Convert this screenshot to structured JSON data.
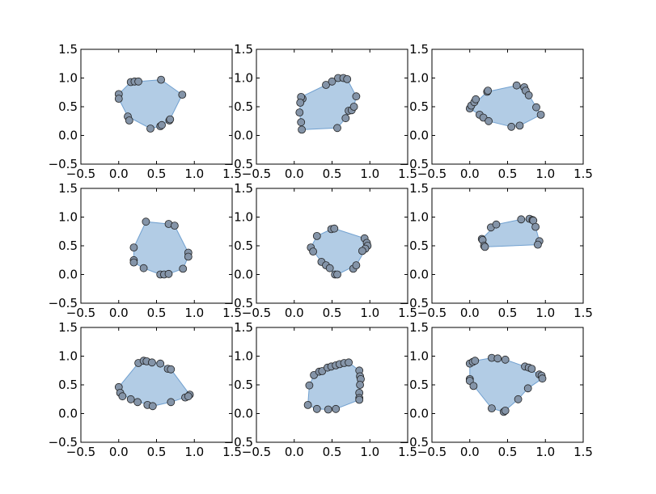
{
  "figure": {
    "grid": "3x3",
    "colors": {
      "hull_fill": "#6699cc",
      "marker_fill": "#8494a8",
      "marker_edge": "#222222"
    }
  },
  "chart_data": [
    {
      "type": "scatter",
      "subplot": "row 1, col 1",
      "xlim": [
        -0.5,
        1.5
      ],
      "ylim": [
        -0.5,
        1.5
      ],
      "xticks": [
        "−0.5",
        "0.0",
        "0.5",
        "1.0",
        "1.5"
      ],
      "yticks": [
        "−0.5",
        "0.0",
        "0.5",
        "1.0",
        "1.5"
      ],
      "grid": false,
      "points": [
        [
          0.0,
          0.72
        ],
        [
          0.0,
          0.64
        ],
        [
          0.12,
          0.33
        ],
        [
          0.14,
          0.26
        ],
        [
          0.16,
          0.93
        ],
        [
          0.21,
          0.94
        ],
        [
          0.26,
          0.94
        ],
        [
          0.42,
          0.12
        ],
        [
          0.55,
          0.16
        ],
        [
          0.56,
          0.97
        ],
        [
          0.57,
          0.18
        ],
        [
          0.67,
          0.26
        ],
        [
          0.68,
          0.28
        ],
        [
          0.84,
          0.71
        ]
      ],
      "hull": [
        [
          0.0,
          0.64
        ],
        [
          0.0,
          0.72
        ],
        [
          0.16,
          0.93
        ],
        [
          0.56,
          0.97
        ],
        [
          0.84,
          0.71
        ],
        [
          0.67,
          0.26
        ],
        [
          0.55,
          0.16
        ],
        [
          0.42,
          0.12
        ],
        [
          0.12,
          0.33
        ]
      ]
    },
    {
      "type": "scatter",
      "subplot": "row 1, col 2",
      "xlim": [
        -0.5,
        1.5
      ],
      "ylim": [
        -0.5,
        1.5
      ],
      "xticks": [
        "−0.5",
        "0.0",
        "0.5",
        "1.0",
        "1.5"
      ],
      "yticks": [
        "−0.5",
        "0.0",
        "0.5",
        "1.0",
        "1.5"
      ],
      "grid": false,
      "points": [
        [
          0.1,
          0.1
        ],
        [
          0.11,
          0.64
        ],
        [
          0.09,
          0.67
        ],
        [
          0.08,
          0.57
        ],
        [
          0.07,
          0.4
        ],
        [
          0.09,
          0.23
        ],
        [
          0.42,
          0.88
        ],
        [
          0.5,
          0.94
        ],
        [
          0.58,
          1.0
        ],
        [
          0.65,
          1.0
        ],
        [
          0.7,
          0.98
        ],
        [
          0.72,
          0.43
        ],
        [
          0.68,
          0.3
        ],
        [
          0.76,
          0.44
        ],
        [
          0.79,
          0.5
        ],
        [
          0.82,
          0.68
        ],
        [
          0.57,
          0.13
        ]
      ],
      "hull": [
        [
          0.1,
          0.1
        ],
        [
          0.07,
          0.4
        ],
        [
          0.09,
          0.67
        ],
        [
          0.42,
          0.88
        ],
        [
          0.58,
          1.0
        ],
        [
          0.7,
          0.98
        ],
        [
          0.82,
          0.68
        ],
        [
          0.79,
          0.5
        ],
        [
          0.68,
          0.3
        ],
        [
          0.57,
          0.13
        ]
      ]
    },
    {
      "type": "scatter",
      "subplot": "row 1, col 3",
      "xlim": [
        -0.5,
        1.5
      ],
      "ylim": [
        -0.5,
        1.5
      ],
      "xticks": [
        "−0.5",
        "0.0",
        "0.5",
        "1.0",
        "1.5"
      ],
      "yticks": [
        "−0.5",
        "0.0",
        "0.5",
        "1.0",
        "1.5"
      ],
      "grid": false,
      "points": [
        [
          0.0,
          0.47
        ],
        [
          0.02,
          0.52
        ],
        [
          0.06,
          0.58
        ],
        [
          0.08,
          0.63
        ],
        [
          0.13,
          0.36
        ],
        [
          0.18,
          0.31
        ],
        [
          0.23,
          0.76
        ],
        [
          0.24,
          0.78
        ],
        [
          0.25,
          0.25
        ],
        [
          0.55,
          0.15
        ],
        [
          0.62,
          0.87
        ],
        [
          0.66,
          0.17
        ],
        [
          0.72,
          0.84
        ],
        [
          0.74,
          0.78
        ],
        [
          0.78,
          0.7
        ],
        [
          0.88,
          0.49
        ],
        [
          0.94,
          0.36
        ]
      ],
      "hull": [
        [
          0.0,
          0.47
        ],
        [
          0.23,
          0.76
        ],
        [
          0.62,
          0.87
        ],
        [
          0.72,
          0.84
        ],
        [
          0.88,
          0.49
        ],
        [
          0.94,
          0.36
        ],
        [
          0.66,
          0.17
        ],
        [
          0.55,
          0.15
        ],
        [
          0.25,
          0.25
        ],
        [
          0.13,
          0.36
        ]
      ]
    },
    {
      "type": "scatter",
      "subplot": "row 2, col 1",
      "xlim": [
        -0.5,
        1.5
      ],
      "ylim": [
        -0.5,
        1.5
      ],
      "xticks": [
        "−0.5",
        "0.0",
        "0.5",
        "1.0",
        "1.5"
      ],
      "yticks": [
        "−0.5",
        "0.0",
        "0.5",
        "1.0",
        "1.5"
      ],
      "grid": false,
      "points": [
        [
          0.2,
          0.47
        ],
        [
          0.2,
          0.25
        ],
        [
          0.2,
          0.21
        ],
        [
          0.33,
          0.11
        ],
        [
          0.36,
          0.92
        ],
        [
          0.55,
          0.0
        ],
        [
          0.6,
          0.0
        ],
        [
          0.66,
          0.01
        ],
        [
          0.66,
          0.88
        ],
        [
          0.74,
          0.85
        ],
        [
          0.85,
          0.1
        ],
        [
          0.92,
          0.38
        ],
        [
          0.92,
          0.31
        ]
      ],
      "hull": [
        [
          0.2,
          0.21
        ],
        [
          0.2,
          0.47
        ],
        [
          0.36,
          0.92
        ],
        [
          0.66,
          0.88
        ],
        [
          0.74,
          0.85
        ],
        [
          0.92,
          0.38
        ],
        [
          0.92,
          0.31
        ],
        [
          0.85,
          0.1
        ],
        [
          0.66,
          0.01
        ],
        [
          0.55,
          0.0
        ],
        [
          0.33,
          0.11
        ]
      ]
    },
    {
      "type": "scatter",
      "subplot": "row 2, col 2",
      "xlim": [
        -0.5,
        1.5
      ],
      "ylim": [
        -0.5,
        1.5
      ],
      "xticks": [
        "−0.5",
        "0.0",
        "0.5",
        "1.0",
        "1.5"
      ],
      "yticks": [
        "−0.5",
        "0.0",
        "0.5",
        "1.0",
        "1.5"
      ],
      "grid": false,
      "points": [
        [
          0.22,
          0.47
        ],
        [
          0.25,
          0.4
        ],
        [
          0.3,
          0.67
        ],
        [
          0.36,
          0.22
        ],
        [
          0.42,
          0.16
        ],
        [
          0.47,
          0.11
        ],
        [
          0.49,
          0.79
        ],
        [
          0.53,
          0.8
        ],
        [
          0.54,
          0.0
        ],
        [
          0.57,
          0.0
        ],
        [
          0.78,
          0.1
        ],
        [
          0.82,
          0.16
        ],
        [
          0.93,
          0.63
        ],
        [
          0.96,
          0.55
        ],
        [
          0.97,
          0.5
        ],
        [
          0.94,
          0.45
        ],
        [
          0.9,
          0.41
        ]
      ],
      "hull": [
        [
          0.22,
          0.47
        ],
        [
          0.3,
          0.67
        ],
        [
          0.49,
          0.79
        ],
        [
          0.53,
          0.8
        ],
        [
          0.93,
          0.63
        ],
        [
          0.97,
          0.5
        ],
        [
          0.82,
          0.16
        ],
        [
          0.57,
          0.0
        ],
        [
          0.54,
          0.0
        ],
        [
          0.36,
          0.22
        ]
      ]
    },
    {
      "type": "scatter",
      "subplot": "row 2, col 3",
      "xlim": [
        -0.5,
        1.5
      ],
      "ylim": [
        -0.5,
        1.5
      ],
      "xticks": [
        "−0.5",
        "0.0",
        "0.5",
        "1.0",
        "1.5"
      ],
      "yticks": [
        "−0.5",
        "0.0",
        "0.5",
        "1.0",
        "1.5"
      ],
      "grid": false,
      "points": [
        [
          0.16,
          0.62
        ],
        [
          0.17,
          0.6
        ],
        [
          0.19,
          0.5
        ],
        [
          0.2,
          0.48
        ],
        [
          0.28,
          0.82
        ],
        [
          0.35,
          0.87
        ],
        [
          0.68,
          0.96
        ],
        [
          0.79,
          0.97
        ],
        [
          0.83,
          0.95
        ],
        [
          0.84,
          0.94
        ],
        [
          0.87,
          0.83
        ],
        [
          0.92,
          0.58
        ],
        [
          0.9,
          0.52
        ]
      ],
      "hull": [
        [
          0.16,
          0.62
        ],
        [
          0.35,
          0.87
        ],
        [
          0.68,
          0.96
        ],
        [
          0.79,
          0.97
        ],
        [
          0.87,
          0.83
        ],
        [
          0.92,
          0.58
        ],
        [
          0.9,
          0.52
        ],
        [
          0.2,
          0.48
        ]
      ]
    },
    {
      "type": "scatter",
      "subplot": "row 3, col 1",
      "xlim": [
        -0.5,
        1.5
      ],
      "ylim": [
        -0.5,
        1.5
      ],
      "xticks": [
        "−0.5",
        "0.0",
        "0.5",
        "1.0",
        "1.5"
      ],
      "yticks": [
        "−0.5",
        "0.0",
        "0.5",
        "1.0",
        "1.5"
      ],
      "grid": false,
      "points": [
        [
          0.0,
          0.46
        ],
        [
          0.02,
          0.36
        ],
        [
          0.05,
          0.3
        ],
        [
          0.16,
          0.25
        ],
        [
          0.26,
          0.88
        ],
        [
          0.33,
          0.92
        ],
        [
          0.37,
          0.91
        ],
        [
          0.44,
          0.89
        ],
        [
          0.55,
          0.87
        ],
        [
          0.65,
          0.78
        ],
        [
          0.69,
          0.77
        ],
        [
          0.25,
          0.2
        ],
        [
          0.38,
          0.15
        ],
        [
          0.45,
          0.13
        ],
        [
          0.69,
          0.2
        ],
        [
          0.88,
          0.28
        ],
        [
          0.94,
          0.33
        ],
        [
          0.92,
          0.3
        ]
      ],
      "hull": [
        [
          0.0,
          0.46
        ],
        [
          0.26,
          0.88
        ],
        [
          0.33,
          0.92
        ],
        [
          0.55,
          0.87
        ],
        [
          0.69,
          0.77
        ],
        [
          0.94,
          0.33
        ],
        [
          0.88,
          0.28
        ],
        [
          0.69,
          0.2
        ],
        [
          0.45,
          0.13
        ],
        [
          0.16,
          0.25
        ],
        [
          0.02,
          0.36
        ]
      ]
    },
    {
      "type": "scatter",
      "subplot": "row 3, col 2",
      "xlim": [
        -0.5,
        1.5
      ],
      "ylim": [
        -0.5,
        1.5
      ],
      "xticks": [
        "−0.5",
        "0.0",
        "0.5",
        "1.0",
        "1.5"
      ],
      "yticks": [
        "−0.5",
        "0.0",
        "0.5",
        "1.0",
        "1.5"
      ],
      "grid": false,
      "points": [
        [
          0.18,
          0.15
        ],
        [
          0.2,
          0.49
        ],
        [
          0.26,
          0.67
        ],
        [
          0.33,
          0.73
        ],
        [
          0.37,
          0.74
        ],
        [
          0.44,
          0.8
        ],
        [
          0.49,
          0.82
        ],
        [
          0.55,
          0.84
        ],
        [
          0.6,
          0.86
        ],
        [
          0.66,
          0.88
        ],
        [
          0.72,
          0.89
        ],
        [
          0.86,
          0.75
        ],
        [
          0.87,
          0.65
        ],
        [
          0.88,
          0.6
        ],
        [
          0.87,
          0.5
        ],
        [
          0.86,
          0.36
        ],
        [
          0.86,
          0.27
        ],
        [
          0.86,
          0.24
        ],
        [
          0.3,
          0.08
        ],
        [
          0.45,
          0.07
        ],
        [
          0.55,
          0.08
        ]
      ],
      "hull": [
        [
          0.18,
          0.15
        ],
        [
          0.2,
          0.49
        ],
        [
          0.26,
          0.67
        ],
        [
          0.33,
          0.73
        ],
        [
          0.72,
          0.89
        ],
        [
          0.86,
          0.75
        ],
        [
          0.88,
          0.6
        ],
        [
          0.86,
          0.24
        ],
        [
          0.55,
          0.08
        ],
        [
          0.45,
          0.07
        ],
        [
          0.3,
          0.08
        ]
      ]
    },
    {
      "type": "scatter",
      "subplot": "row 3, col 3",
      "xlim": [
        -0.5,
        1.5
      ],
      "ylim": [
        -0.5,
        1.5
      ],
      "xticks": [
        "−0.5",
        "0.0",
        "0.5",
        "1.0",
        "1.5"
      ],
      "yticks": [
        "−0.5",
        "0.0",
        "0.5",
        "1.0",
        "1.5"
      ],
      "grid": false,
      "points": [
        [
          0.0,
          0.87
        ],
        [
          0.04,
          0.9
        ],
        [
          0.07,
          0.92
        ],
        [
          0.0,
          0.6
        ],
        [
          0.0,
          0.57
        ],
        [
          0.05,
          0.48
        ],
        [
          0.29,
          0.97
        ],
        [
          0.37,
          0.96
        ],
        [
          0.47,
          0.94
        ],
        [
          0.73,
          0.82
        ],
        [
          0.78,
          0.8
        ],
        [
          0.82,
          0.78
        ],
        [
          0.92,
          0.68
        ],
        [
          0.95,
          0.66
        ],
        [
          0.96,
          0.61
        ],
        [
          0.29,
          0.09
        ],
        [
          0.45,
          0.03
        ],
        [
          0.47,
          0.05
        ],
        [
          0.64,
          0.25
        ],
        [
          0.77,
          0.44
        ]
      ],
      "hull": [
        [
          0.0,
          0.57
        ],
        [
          0.0,
          0.87
        ],
        [
          0.07,
          0.92
        ],
        [
          0.29,
          0.97
        ],
        [
          0.47,
          0.94
        ],
        [
          0.73,
          0.82
        ],
        [
          0.92,
          0.68
        ],
        [
          0.96,
          0.61
        ],
        [
          0.77,
          0.44
        ],
        [
          0.64,
          0.25
        ],
        [
          0.45,
          0.03
        ],
        [
          0.29,
          0.09
        ]
      ]
    }
  ]
}
